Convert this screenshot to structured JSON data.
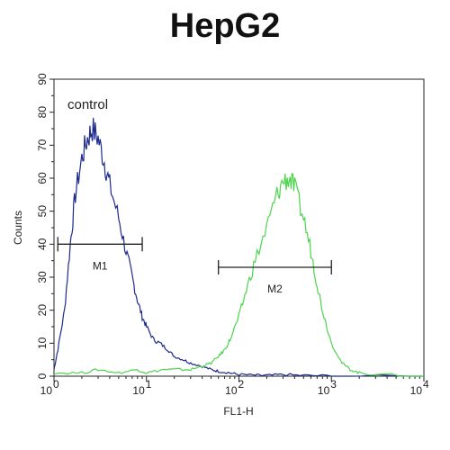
{
  "chart_data": {
    "type": "line",
    "title": "HepG2",
    "xlabel": "FL1-H",
    "ylabel": "Counts",
    "x_scale": "log",
    "xlim": [
      1,
      10000
    ],
    "ylim": [
      0,
      90
    ],
    "x_ticks": [
      {
        "base": "10",
        "exp": "0"
      },
      {
        "base": "10",
        "exp": "1"
      },
      {
        "base": "10",
        "exp": "2"
      },
      {
        "base": "10",
        "exp": "3"
      },
      {
        "base": "10",
        "exp": "4"
      }
    ],
    "y_ticks": [
      "0",
      "10",
      "20",
      "30",
      "40",
      "50",
      "60",
      "70",
      "80",
      "90"
    ],
    "grid": false,
    "annotations": {
      "control_label": "control",
      "m1": {
        "label": "M1",
        "x_start": 1.1,
        "x_end": 9,
        "y": 40
      },
      "m2": {
        "label": "M2",
        "x_start": 60,
        "x_end": 1000,
        "y": 33
      }
    },
    "series": [
      {
        "color": "#1e2a8c",
        "x": [
          1,
          1.1,
          1.3,
          1.5,
          1.7,
          2,
          2.3,
          2.6,
          3,
          3.5,
          4,
          5,
          6,
          7,
          8,
          9,
          10,
          12,
          14,
          17,
          20,
          25,
          30,
          40,
          50,
          60,
          80,
          100,
          150,
          200,
          300,
          500,
          1000,
          10000
        ],
        "values": [
          2,
          8,
          20,
          40,
          55,
          66,
          72,
          75,
          72,
          65,
          58,
          48,
          38,
          30,
          23,
          18,
          15,
          11,
          10,
          8,
          6,
          5,
          4,
          3,
          2,
          1.5,
          1,
          0.5,
          0.3,
          0.2,
          0.5,
          0.2,
          0.1,
          0
        ]
      },
      {
        "color": "#4cd44c",
        "x": [
          1,
          2,
          3,
          5,
          8,
          10,
          15,
          20,
          30,
          40,
          50,
          60,
          70,
          80,
          100,
          120,
          150,
          200,
          250,
          300,
          350,
          400,
          500,
          600,
          700,
          800,
          1000,
          1300,
          1600,
          2000,
          3000,
          10000
        ],
        "values": [
          1,
          1,
          2,
          1,
          2,
          1,
          2,
          2,
          2,
          3,
          4,
          6,
          8,
          11,
          18,
          26,
          35,
          45,
          54,
          59,
          60,
          57,
          48,
          38,
          28,
          20,
          10,
          4,
          2,
          1,
          0.5,
          0
        ]
      }
    ]
  }
}
